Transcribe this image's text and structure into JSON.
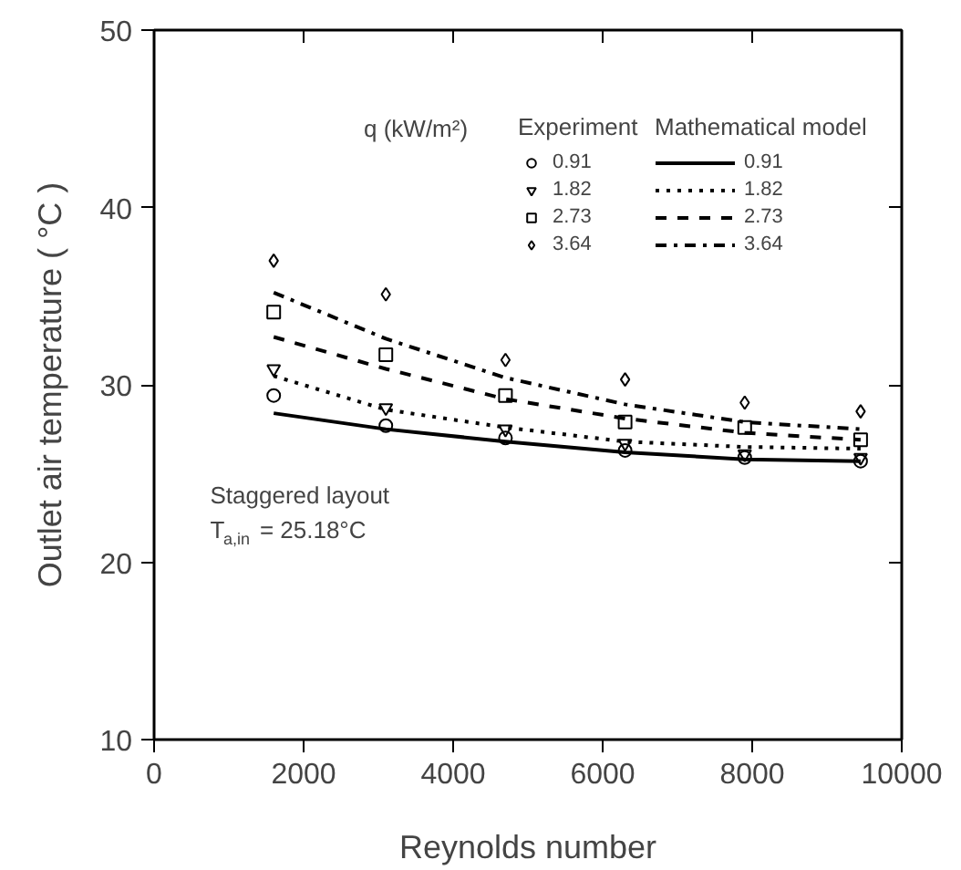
{
  "chart_data": {
    "type": "scatter",
    "xlabel": "Reynolds number",
    "ylabel": "Outlet air temperature ( °C )",
    "legend_title": "q (kW/m²)",
    "x": [
      1600,
      3100,
      4700,
      6300,
      7900,
      9450
    ],
    "series": [
      {
        "name": "0.91",
        "marker": "circle",
        "color": "#000000",
        "values": [
          29.4,
          27.7,
          27.0,
          26.3,
          25.9,
          25.7
        ]
      },
      {
        "name": "1.82",
        "marker": "triangle",
        "color": "#000000",
        "values": [
          30.9,
          28.7,
          27.5,
          26.7,
          26.1,
          25.9
        ]
      },
      {
        "name": "2.73",
        "marker": "square",
        "color": "#000000",
        "values": [
          34.1,
          31.7,
          29.4,
          27.9,
          27.6,
          26.9
        ]
      },
      {
        "name": "3.64",
        "marker": "diamond",
        "color": "#000000",
        "values": [
          37.0,
          35.1,
          31.4,
          30.3,
          29.0,
          28.5
        ]
      },
      {
        "name": "0.91",
        "type": "line",
        "line_style": "solid",
        "color": "#000000",
        "values": [
          28.4,
          27.5,
          26.8,
          26.2,
          25.8,
          25.7
        ]
      },
      {
        "name": "1.82",
        "type": "line",
        "line_style": "dotted",
        "color": "#000000",
        "values": [
          30.5,
          28.6,
          27.6,
          26.8,
          26.5,
          26.4
        ]
      },
      {
        "name": "2.73",
        "type": "line",
        "line_style": "dashed",
        "color": "#000000",
        "values": [
          32.7,
          30.9,
          29.2,
          28.1,
          27.3,
          26.9
        ]
      },
      {
        "name": "3.64",
        "type": "line",
        "line_style": "dashdot",
        "color": "#000000",
        "values": [
          35.2,
          32.6,
          30.4,
          28.9,
          27.9,
          27.5
        ]
      }
    ],
    "annotations": [
      "Experiment",
      "Mathematical model",
      "Staggered layout",
      "T$_{a,in}$ = 25.18°C"
    ],
    "xlim": [
      0,
      10000
    ],
    "xticks": [
      0,
      2000,
      4000,
      6000,
      8000,
      10000
    ],
    "ylim": [
      10,
      50
    ],
    "yticks": [
      10,
      20,
      30,
      40,
      50
    ],
    "legend": "top right",
    "grid": false
  }
}
